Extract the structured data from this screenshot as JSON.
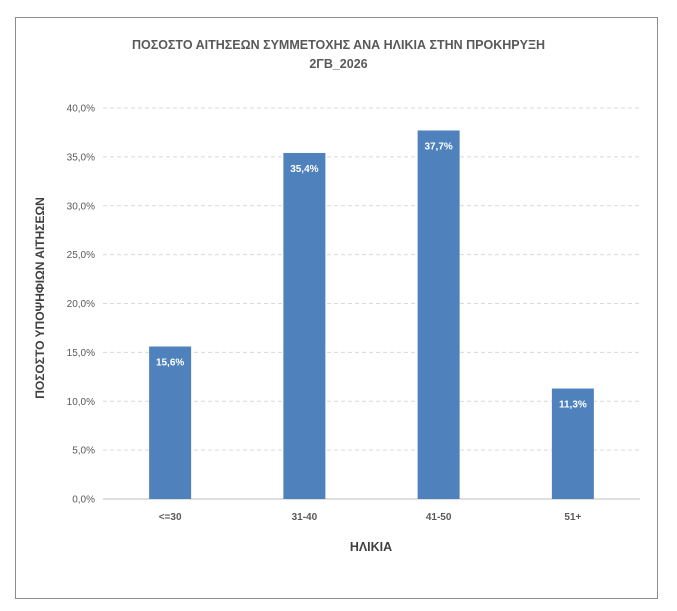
{
  "chart_data": {
    "type": "bar",
    "title": "ΠΟΣΟΣΤΟ ΑΙΤΗΣΕΩΝ ΣΥΜΜΕΤΟΧΗΣ ΑΝΑ ΗΛΙΚΙΑ ΣΤΗΝ ΠΡΟΚΗΡΥΞΗ",
    "subtitle": "2ΓΒ_2026",
    "xlabel": "ΗΛΙΚΙΑ",
    "ylabel": "ΠΟΣΟΣΤΟ ΥΠΟΨΗΦΙΩΝ ΑΙΤΗΣΕΩΝ",
    "categories": [
      "<=30",
      "31-40",
      "41-50",
      "51+"
    ],
    "values": [
      15.6,
      35.4,
      37.7,
      11.3
    ],
    "data_labels": [
      "15,6%",
      "35,4%",
      "37,7%",
      "11,3%"
    ],
    "ylim": [
      0,
      40
    ],
    "yticks": [
      "0,0%",
      "5,0%",
      "10,0%",
      "15,0%",
      "20,0%",
      "25,0%",
      "30,0%",
      "35,0%",
      "40,0%"
    ],
    "grid": true,
    "bar_color": "#4f81bd",
    "grid_color": "#d9d9d9"
  }
}
